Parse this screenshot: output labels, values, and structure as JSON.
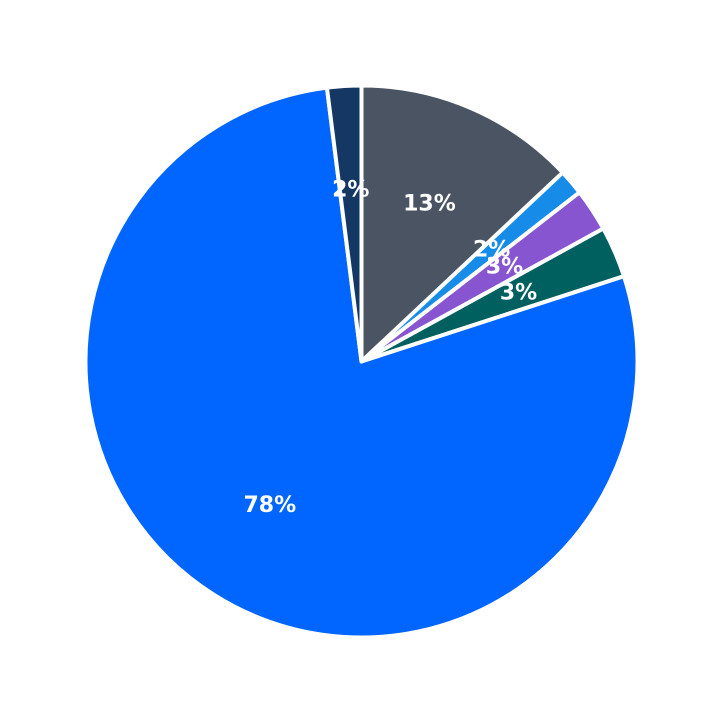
{
  "chart_data": {
    "type": "pie",
    "title": "",
    "start_angle_deg": 0,
    "direction": "clockwise",
    "slices": [
      {
        "label": "13%",
        "value": 13,
        "color": "#4a5462"
      },
      {
        "label": "2%",
        "value": 1.5,
        "color": "#168ce8"
      },
      {
        "label": "3%",
        "value": 2.5,
        "color": "#8755d0"
      },
      {
        "label": "3%",
        "value": 3,
        "color": "#005f5f"
      },
      {
        "label": "78%",
        "value": 78,
        "color": "#0066ff"
      },
      {
        "label": "2%",
        "value": 2,
        "color": "#143863"
      }
    ],
    "legend": "none",
    "grid": false
  }
}
